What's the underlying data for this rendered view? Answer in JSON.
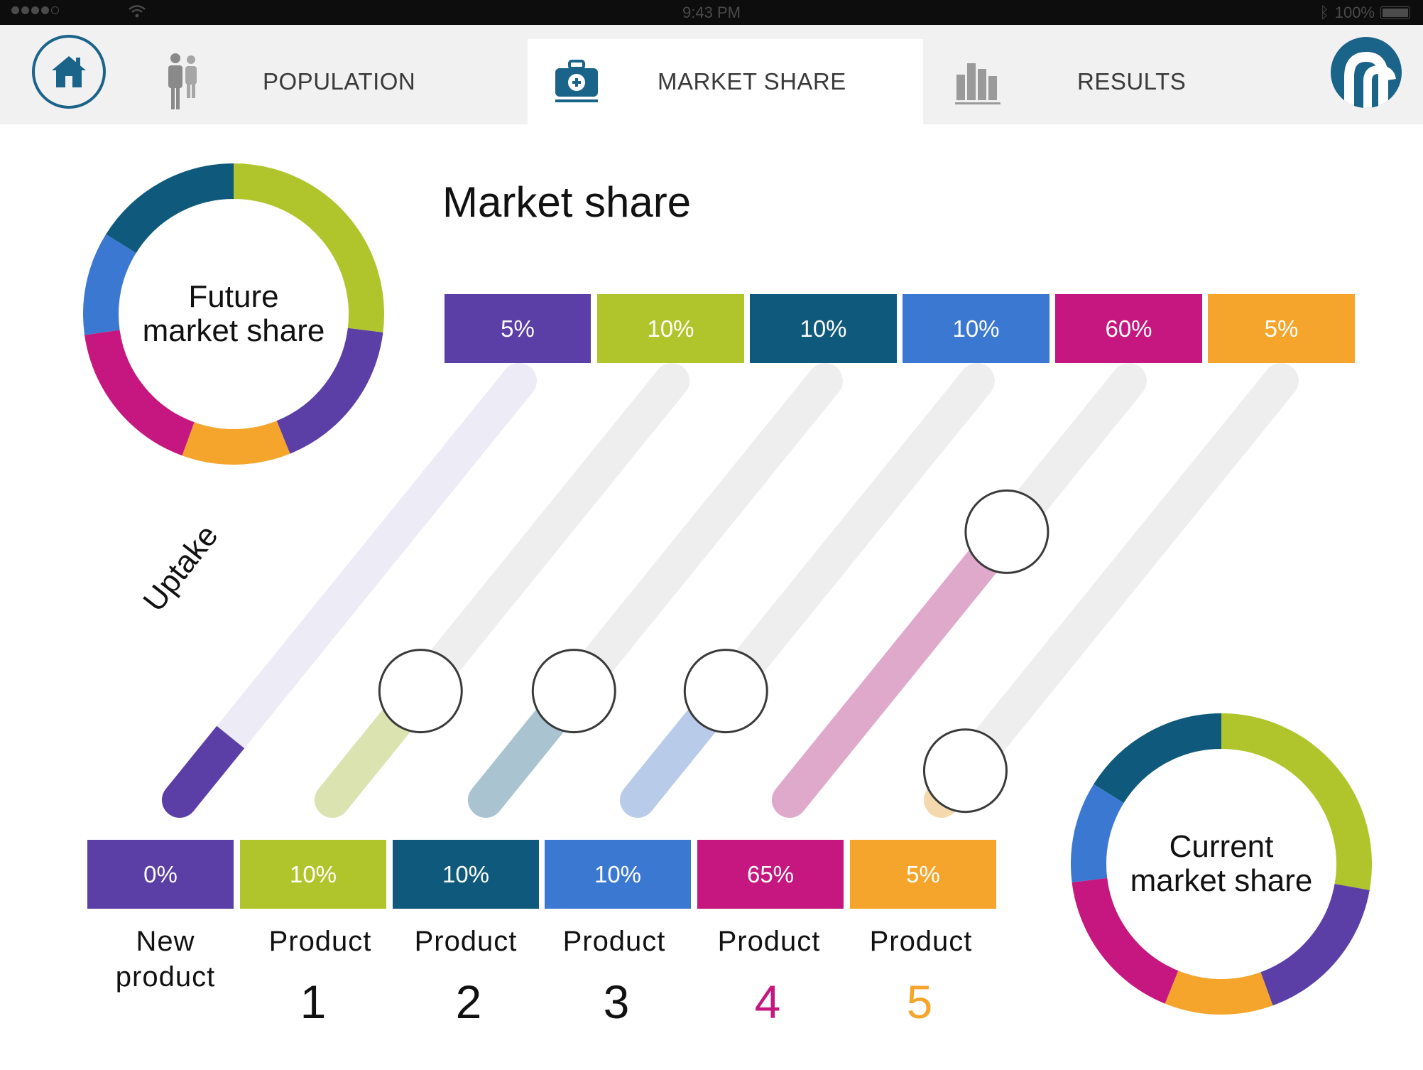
{
  "status_bar": {
    "time": "9:43 PM",
    "battery": "100%"
  },
  "nav": {
    "tabs": [
      {
        "label": "POPULATION",
        "icon": "people-icon",
        "active": false
      },
      {
        "label": "MARKET SHARE",
        "icon": "medical-kit-icon",
        "active": true
      },
      {
        "label": "RESULTS",
        "icon": "bar-chart-icon",
        "active": false
      }
    ],
    "accent": "#1a6389"
  },
  "page": {
    "title": "Market share",
    "uptake_label": "Uptake",
    "future_donut": {
      "line1": "Future",
      "line2": "market share"
    },
    "current_donut": {
      "line1": "Current",
      "line2": "market share"
    }
  },
  "future_shares": [
    "5%",
    "10%",
    "10%",
    "10%",
    "60%",
    "5%"
  ],
  "current_shares": [
    "0%",
    "10%",
    "10%",
    "10%",
    "65%",
    "5%"
  ],
  "products": [
    {
      "label_line1": "New",
      "label_line2": "product",
      "number": "",
      "color": "#5b3ea6",
      "light": "#ecebf7",
      "fill": 0.15,
      "knob": false
    },
    {
      "label_line1": "Product",
      "label_line2": "",
      "number": "1",
      "color": "#b0c52c",
      "light": "#dbe3b0",
      "fill": 0.26,
      "knob": true,
      "number_color": "#111111"
    },
    {
      "label_line1": "Product",
      "label_line2": "",
      "number": "2",
      "color": "#0f5a7c",
      "light": "#a9c4d0",
      "fill": 0.26,
      "knob": true,
      "number_color": "#111111"
    },
    {
      "label_line1": "Product",
      "label_line2": "",
      "number": "3",
      "color": "#3b78d2",
      "light": "#b8cbe8",
      "fill": 0.26,
      "knob": true,
      "number_color": "#111111"
    },
    {
      "label_line1": "Product",
      "label_line2": "",
      "number": "4",
      "color": "#c5177f",
      "light": "#dfa9cb",
      "fill": 0.64,
      "knob": true,
      "number_color": "#c5177f"
    },
    {
      "label_line1": "Product",
      "label_line2": "",
      "number": "5",
      "color": "#f5a52b",
      "light": "#f3d9ad",
      "fill": 0.07,
      "knob": true,
      "number_color": "#f5a52b"
    }
  ],
  "donut_segments_future": [
    {
      "color": "#b0c52c",
      "start": 0,
      "end": 97
    },
    {
      "color": "#5b3ea6",
      "start": 97,
      "end": 158
    },
    {
      "color": "#f5a52b",
      "start": 158,
      "end": 200
    },
    {
      "color": "#c5177f",
      "start": 200,
      "end": 262
    },
    {
      "color": "#3b78d2",
      "start": 262,
      "end": 302
    },
    {
      "color": "#0f5a7c",
      "start": 302,
      "end": 360
    }
  ],
  "donut_segments_current": [
    {
      "color": "#b0c52c",
      "start": 0,
      "end": 100
    },
    {
      "color": "#5b3ea6",
      "start": 100,
      "end": 160
    },
    {
      "color": "#f5a52b",
      "start": 160,
      "end": 202
    },
    {
      "color": "#c5177f",
      "start": 202,
      "end": 263
    },
    {
      "color": "#3b78d2",
      "start": 263,
      "end": 302
    },
    {
      "color": "#0f5a7c",
      "start": 302,
      "end": 360
    }
  ]
}
